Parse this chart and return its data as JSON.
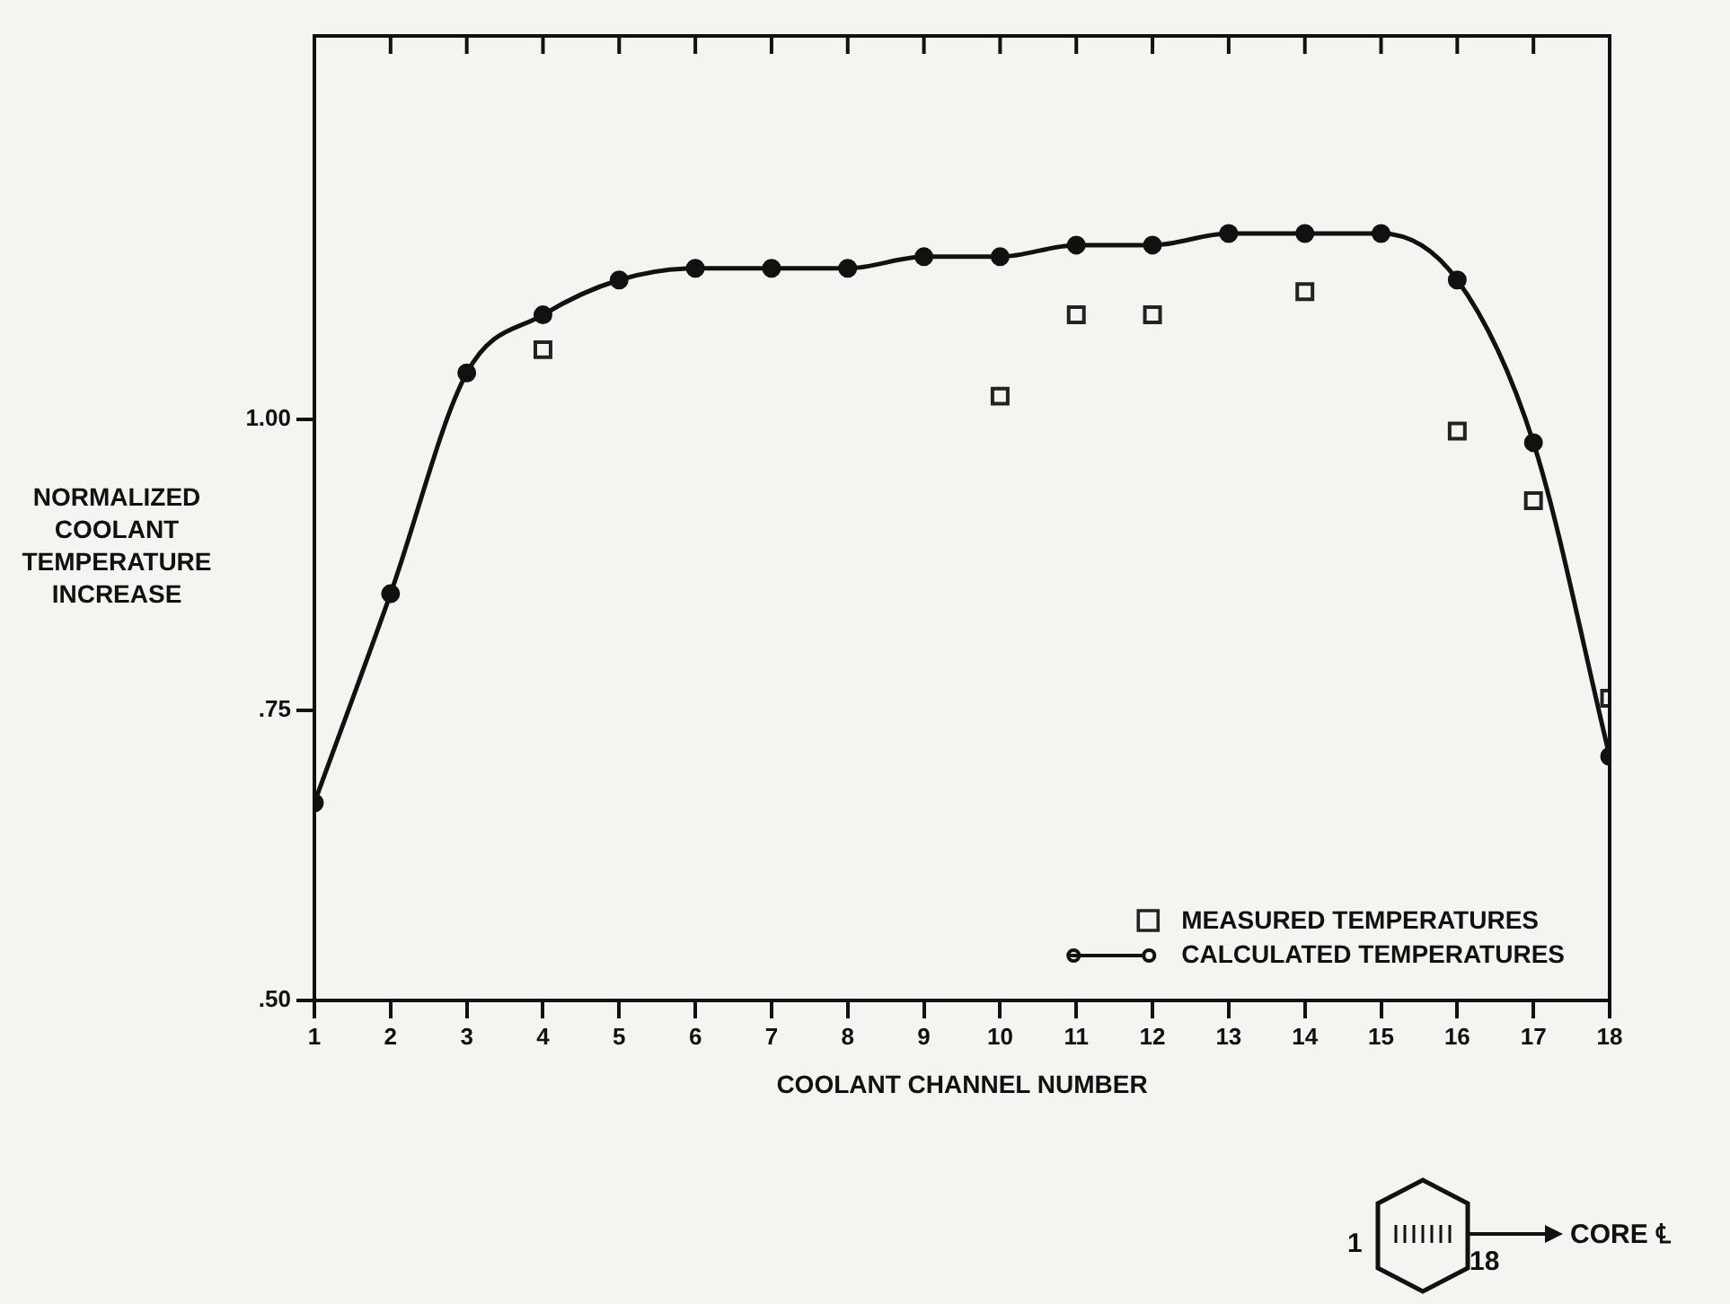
{
  "chart_data": {
    "type": "line",
    "xlabel": "COOLANT CHANNEL NUMBER",
    "ylabel": "NORMALIZED COOLANT TEMPERATURE INCREASE",
    "x": [
      1,
      2,
      3,
      4,
      5,
      6,
      7,
      8,
      9,
      10,
      11,
      12,
      13,
      14,
      15,
      16,
      17,
      18
    ],
    "series": [
      {
        "name": "MEASURED TEMPERATURES",
        "type": "scatter",
        "marker": "square",
        "color": "#222222",
        "values": [
          null,
          null,
          null,
          1.06,
          null,
          null,
          null,
          null,
          null,
          1.02,
          1.09,
          1.09,
          null,
          1.11,
          null,
          0.99,
          0.93,
          0.76
        ]
      },
      {
        "name": "CALCULATED TEMPERATURES",
        "type": "line",
        "marker": "circle",
        "color": "#111111",
        "values": [
          0.67,
          0.85,
          1.04,
          1.09,
          1.12,
          1.13,
          1.13,
          1.13,
          1.14,
          1.14,
          1.15,
          1.15,
          1.16,
          1.16,
          1.16,
          1.12,
          0.98,
          0.71
        ]
      }
    ],
    "xlim": [
      1,
      18
    ],
    "xticks": [
      1,
      2,
      3,
      4,
      5,
      6,
      7,
      8,
      9,
      10,
      11,
      12,
      13,
      14,
      15,
      16,
      17,
      18
    ],
    "ylim": [
      0.5,
      1.33
    ],
    "yticks": [
      {
        "value": 0.5,
        "label": ".50"
      },
      {
        "value": 0.75,
        "label": ".75"
      },
      {
        "value": 1.0,
        "label": "1.00"
      }
    ],
    "legend": "bottom right",
    "annotations": [
      "1",
      "18",
      "CORE ℄"
    ]
  }
}
